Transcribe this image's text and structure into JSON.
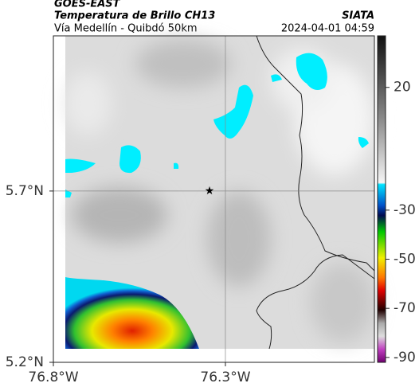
{
  "header": {
    "source": "GOES-EAST",
    "title": "Temperatura de Brillo CH13",
    "subtitle": "Vía Medellín - Quibdó 50km",
    "org": "SIATA",
    "timestamp": "2024-04-01 04:59"
  },
  "map": {
    "xlim": [
      -76.8,
      -75.867
    ],
    "ylim": [
      5.2,
      6.153
    ],
    "xticks": [
      {
        "value": -76.8,
        "label": "76.8°W"
      },
      {
        "value": -76.3,
        "label": "76.3°W"
      }
    ],
    "yticks": [
      {
        "value": 5.2,
        "label": "5.2°N"
      },
      {
        "value": 5.7,
        "label": "5.7°N"
      }
    ],
    "grid": true
  },
  "colorbar": {
    "clim": [
      -92,
      41
    ],
    "ticks": [
      20,
      -30,
      -50,
      -70,
      -90
    ]
  }
}
